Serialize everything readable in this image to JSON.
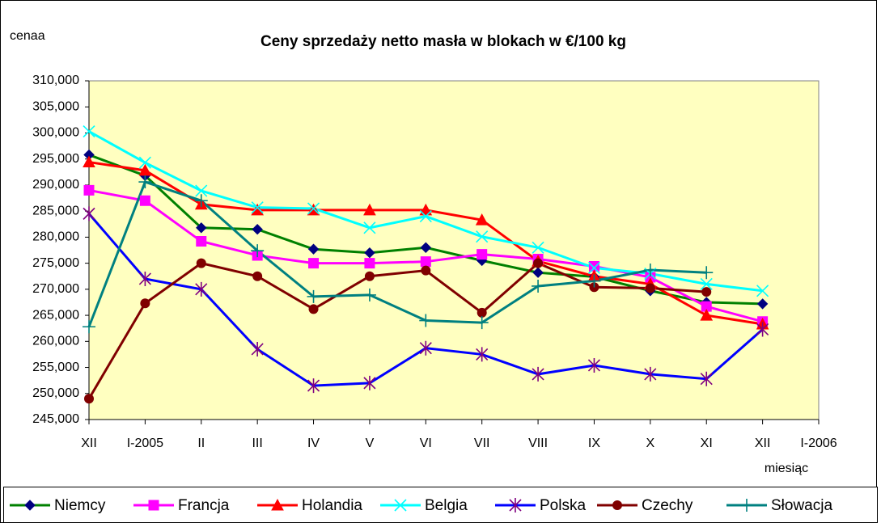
{
  "chart_data": {
    "type": "line",
    "title": "Ceny sprzedaży netto masła w blokach w €/100 kg",
    "y_label": "cenaa",
    "x_label": "miesiąc",
    "categories": [
      "XII",
      "I-2005",
      "II",
      "III",
      "IV",
      "V",
      "VI",
      "VII",
      "VIII",
      "IX",
      "X",
      "XI",
      "XII",
      "I-2006"
    ],
    "ylim": [
      245000,
      310000
    ],
    "yticks": [
      {
        "value": 245000,
        "label": "245,000"
      },
      {
        "value": 250000,
        "label": "250,000"
      },
      {
        "value": 255000,
        "label": "255,000"
      },
      {
        "value": 260000,
        "label": "260,000"
      },
      {
        "value": 265000,
        "label": "265,000"
      },
      {
        "value": 270000,
        "label": "270,000"
      },
      {
        "value": 275000,
        "label": "275,000"
      },
      {
        "value": 280000,
        "label": "280,000"
      },
      {
        "value": 285000,
        "label": "285,000"
      },
      {
        "value": 290000,
        "label": "290,000"
      },
      {
        "value": 295000,
        "label": "295,000"
      },
      {
        "value": 300000,
        "label": "300,000"
      },
      {
        "value": 305000,
        "label": "305,000"
      },
      {
        "value": 310000,
        "label": "310,000"
      }
    ],
    "grid": false,
    "legend": "bottom",
    "background": "#ffffc0",
    "series": [
      {
        "name": "Niemcy",
        "color": "#008000",
        "marker_color": "#000080",
        "marker": "diamond",
        "values": [
          295800,
          291800,
          281800,
          281500,
          277700,
          277000,
          278000,
          275500,
          273200,
          272400,
          269700,
          267500,
          267200,
          null
        ]
      },
      {
        "name": "Francja",
        "color": "#ff00ff",
        "marker_color": "#ff00ff",
        "marker": "square",
        "values": [
          289000,
          287000,
          279200,
          276500,
          275000,
          275000,
          275300,
          276700,
          275800,
          274400,
          272300,
          266700,
          263800,
          null
        ]
      },
      {
        "name": "Holandia",
        "color": "#ff0000",
        "marker_color": "#ff0000",
        "marker": "triangle",
        "values": [
          294400,
          292800,
          286300,
          285200,
          285200,
          285200,
          285200,
          283300,
          275400,
          272500,
          271000,
          265000,
          263300,
          null
        ]
      },
      {
        "name": "Belgia",
        "color": "#00ffff",
        "marker_color": "#00ffff",
        "marker": "x",
        "values": [
          300300,
          294300,
          288900,
          285700,
          285500,
          281800,
          284000,
          280100,
          278000,
          274100,
          273000,
          271000,
          269700,
          null
        ]
      },
      {
        "name": "Polska",
        "color": "#0000ff",
        "marker_color": "#800080",
        "marker": "star",
        "values": [
          284500,
          272000,
          270000,
          258500,
          251500,
          252000,
          258700,
          257500,
          253700,
          255400,
          253700,
          252800,
          262300,
          null
        ]
      },
      {
        "name": "Czechy",
        "color": "#800000",
        "marker_color": "#800000",
        "marker": "circle",
        "values": [
          249000,
          267300,
          275000,
          272500,
          266200,
          272500,
          273600,
          265500,
          275000,
          270400,
          270200,
          269500,
          null,
          null
        ]
      },
      {
        "name": "Słowacja",
        "color": "#008080",
        "marker_color": "#008080",
        "marker": "plus",
        "values": [
          262800,
          290600,
          287000,
          277400,
          268600,
          268900,
          264000,
          263600,
          270600,
          271600,
          273700,
          273200,
          null,
          null
        ]
      }
    ]
  }
}
